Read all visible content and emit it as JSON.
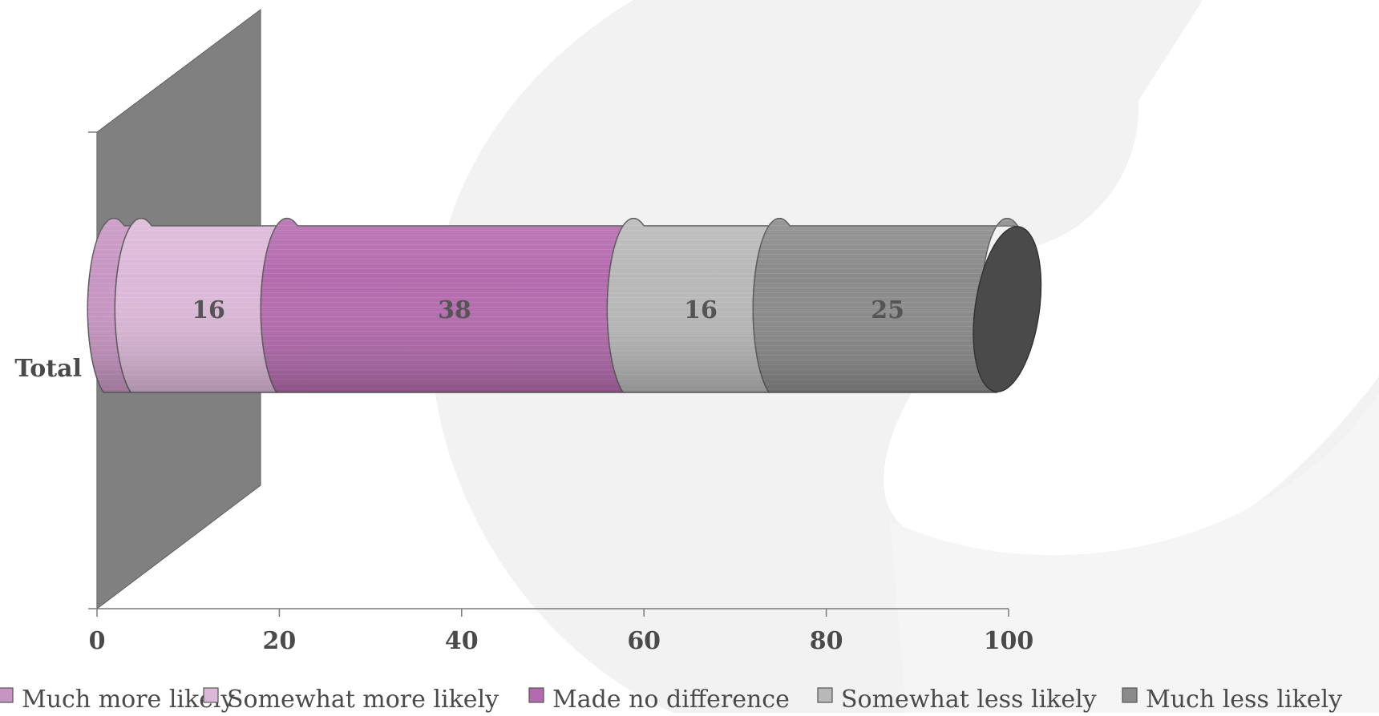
{
  "chart_data": {
    "type": "bar",
    "stacked": true,
    "orientation": "horizontal",
    "categories": [
      "Total"
    ],
    "series": [
      {
        "name": "Much more likely",
        "values": [
          3
        ],
        "color": "#c795c2"
      },
      {
        "name": "Somewhat more likely",
        "values": [
          16
        ],
        "color": "#dcb8d8"
      },
      {
        "name": "Made no difference",
        "values": [
          38
        ],
        "color": "#b46aae"
      },
      {
        "name": "Somewhat less likely",
        "values": [
          16
        ],
        "color": "#b8b8b8"
      },
      {
        "name": "Much less likely",
        "values": [
          25
        ],
        "color": "#8a8a8a"
      }
    ],
    "xticks": [
      "0",
      "20",
      "40",
      "60",
      "80",
      "100"
    ],
    "xlim": [
      0,
      100
    ],
    "legend_position": "bottom",
    "grid": false,
    "style": "3d-cylinder",
    "wall_color": "#808080",
    "end_cap_color": "#4a4a4a"
  }
}
